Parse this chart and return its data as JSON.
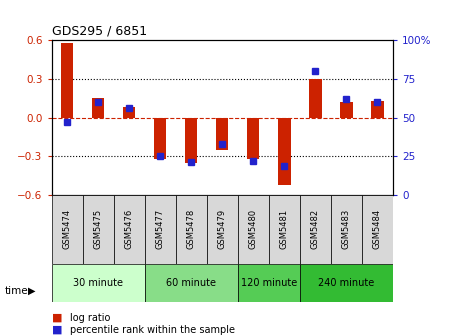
{
  "title": "GDS295 / 6851",
  "samples": [
    "GSM5474",
    "GSM5475",
    "GSM5476",
    "GSM5477",
    "GSM5478",
    "GSM5479",
    "GSM5480",
    "GSM5481",
    "GSM5482",
    "GSM5483",
    "GSM5484"
  ],
  "log_ratio": [
    0.58,
    0.15,
    0.08,
    -0.32,
    -0.35,
    -0.25,
    -0.32,
    -0.52,
    0.3,
    0.12,
    0.13
  ],
  "percentile": [
    47,
    60,
    56,
    25,
    21,
    33,
    22,
    19,
    80,
    62,
    60
  ],
  "bar_color": "#cc2200",
  "dot_color": "#2222cc",
  "ylim_left": [
    -0.6,
    0.6
  ],
  "ylim_right": [
    0,
    100
  ],
  "yticks_left": [
    -0.6,
    -0.3,
    0.0,
    0.3,
    0.6
  ],
  "yticks_right": [
    0,
    25,
    50,
    75,
    100
  ],
  "y2ticklabels": [
    "0",
    "25",
    "50",
    "75",
    "100%"
  ],
  "groups": [
    {
      "label": "30 minute",
      "start": 0,
      "end": 3,
      "color": "#ccffcc"
    },
    {
      "label": "60 minute",
      "start": 3,
      "end": 6,
      "color": "#88dd88"
    },
    {
      "label": "120 minute",
      "start": 6,
      "end": 8,
      "color": "#55cc55"
    },
    {
      "label": "240 minute",
      "start": 8,
      "end": 11,
      "color": "#33bb33"
    }
  ],
  "time_label": "time",
  "legend1": "log ratio",
  "legend2": "percentile rank within the sample",
  "bg_color": "#ffffff",
  "plot_bg": "#ffffff"
}
